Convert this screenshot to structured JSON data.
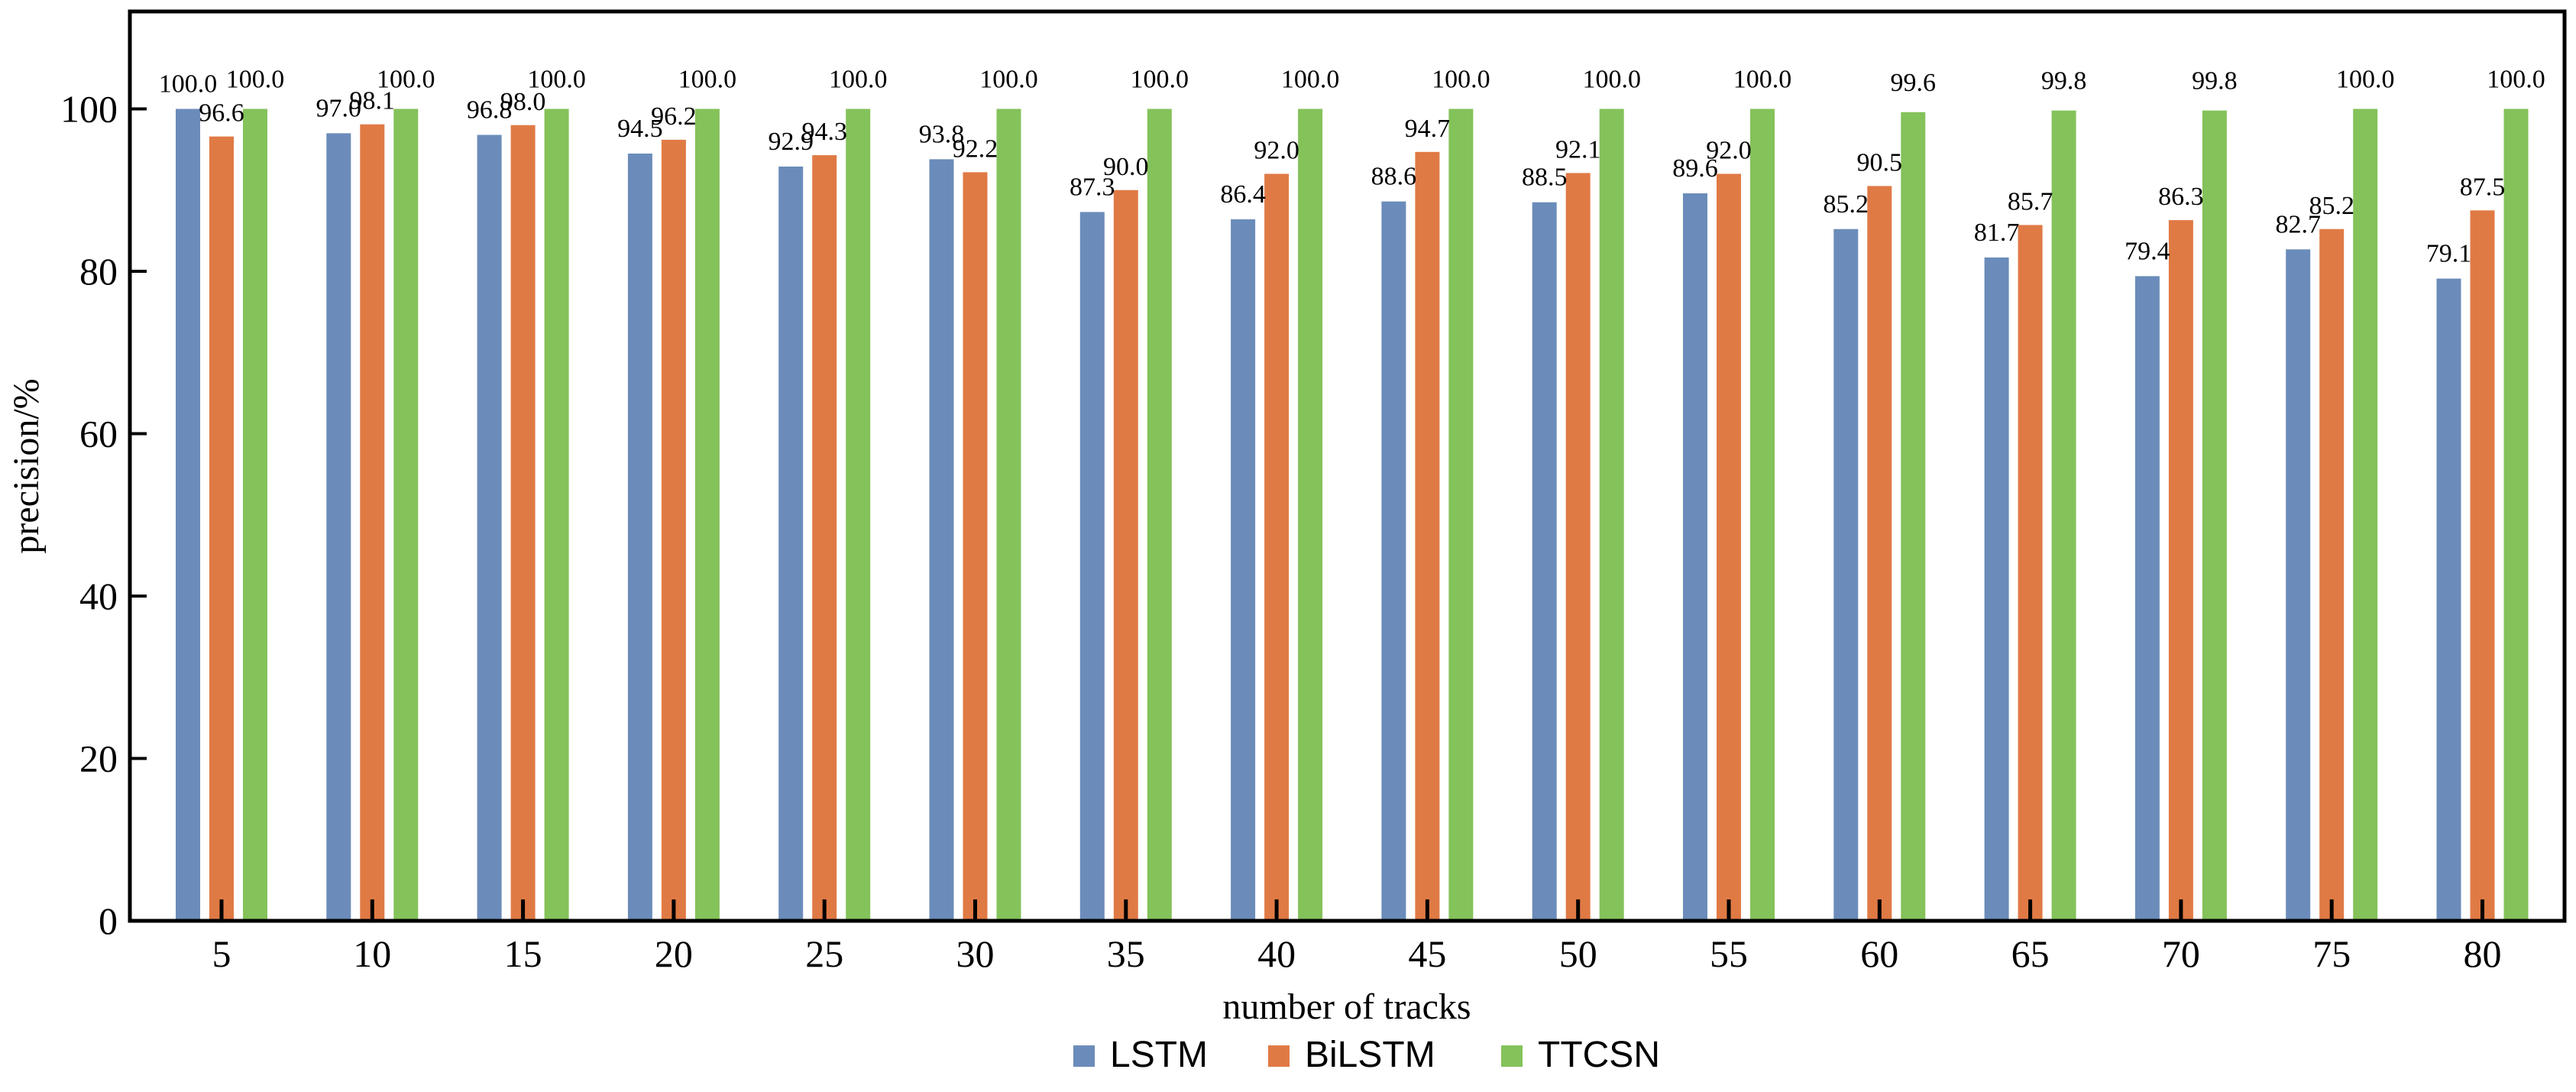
{
  "chart_data": {
    "type": "bar",
    "xlabel": "number of tracks",
    "ylabel": "precision/%",
    "ylim": [
      0,
      112
    ],
    "yticks": [
      0,
      20,
      40,
      60,
      80,
      100
    ],
    "categories": [
      "5",
      "10",
      "15",
      "20",
      "25",
      "30",
      "35",
      "40",
      "45",
      "50",
      "55",
      "60",
      "65",
      "70",
      "75",
      "80"
    ],
    "series": [
      {
        "name": "LSTM",
        "color": "#6b8cba",
        "values": [
          100.0,
          97.0,
          96.8,
          94.5,
          92.9,
          93.8,
          87.3,
          86.4,
          88.6,
          88.5,
          89.6,
          85.2,
          81.7,
          79.4,
          82.7,
          79.1
        ],
        "labels": [
          "100.0",
          "97.0",
          "96.8",
          "94.5",
          "92.9",
          "93.8",
          "87.3",
          "86.4",
          "88.6",
          "88.5",
          "89.6",
          "85.2",
          "81.7",
          "79.4",
          "82.7",
          "79.1"
        ]
      },
      {
        "name": "BiLSTM",
        "color": "#e07a45",
        "values": [
          96.6,
          98.1,
          98.0,
          96.2,
          94.3,
          92.2,
          90.0,
          92.0,
          94.7,
          92.1,
          92.0,
          90.5,
          85.7,
          86.3,
          85.2,
          87.5
        ],
        "labels": [
          "96.6",
          "98.1",
          "98.0",
          "96.2",
          "94.3",
          "92.2",
          "90.0",
          "92.0",
          "94.7",
          "92.1",
          "92.0",
          "90.5",
          "85.7",
          "86.3",
          "85.2",
          "87.5"
        ]
      },
      {
        "name": "TTCSN",
        "color": "#84c25a",
        "values": [
          100.0,
          100.0,
          100.0,
          100.0,
          100.0,
          100.0,
          100.0,
          100.0,
          100.0,
          100.0,
          100.0,
          99.6,
          99.8,
          99.8,
          100.0,
          100.0
        ],
        "labels": [
          "100.0",
          "100.0",
          "100.0",
          "100.0",
          "100.0",
          "100.0",
          "100.0",
          "100.0",
          "100.0",
          "100.0",
          "100.0",
          "99.6",
          "99.8",
          "99.8",
          "100.0",
          "100.0"
        ]
      }
    ],
    "grid": false,
    "legend": "bottom-center"
  }
}
